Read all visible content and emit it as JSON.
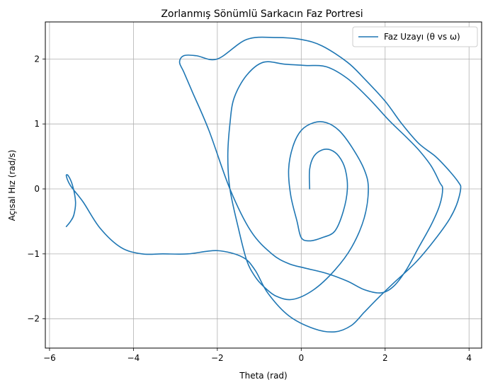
{
  "chart_data": {
    "type": "line",
    "title": "Zorlanmış Sönümlü Sarkacın Faz Portresi",
    "xlabel": "Theta (rad)",
    "ylabel": "Açısal Hız (rad/s)",
    "xlim": [
      -6.1,
      4.3
    ],
    "ylim": [
      -2.45,
      2.57
    ],
    "xticks": [
      -6,
      -4,
      -2,
      0,
      2,
      4
    ],
    "yticks": [
      -2,
      -1,
      0,
      1,
      2
    ],
    "xtick_labels": [
      "−6",
      "−4",
      "−2",
      "0",
      "2",
      "4"
    ],
    "ytick_labels": [
      "−2",
      "−1",
      "0",
      "1",
      "2"
    ],
    "grid": true,
    "legend_position": "top-right",
    "series": [
      {
        "name": "Faz Uzayı (θ vs ω)",
        "color": "#1f77b4",
        "x": [
          0.2,
          0.2,
          0.3,
          0.5,
          0.7,
          0.9,
          1.05,
          1.1,
          1.0,
          0.8,
          0.5,
          0.2,
          0.0,
          -0.1,
          -0.25,
          -0.3,
          -0.2,
          0.0,
          0.3,
          0.6,
          0.9,
          1.2,
          1.5,
          1.6,
          1.5,
          1.2,
          0.8,
          0.3,
          -0.2,
          -0.6,
          -0.9,
          -1.1,
          -1.3,
          -1.5,
          -1.7,
          -1.75,
          -1.7,
          -1.6,
          -1.3,
          -0.9,
          -0.4,
          0.1,
          0.6,
          1.1,
          1.6,
          2.1,
          2.5,
          2.8,
          3.1,
          3.3,
          3.37,
          3.3,
          3.1,
          2.8,
          2.5,
          2.2,
          1.9,
          1.5,
          1.1,
          0.6,
          0.1,
          -0.3,
          -0.7,
          -1.2,
          -1.7,
          -2.2,
          -2.6,
          -2.8,
          -2.9,
          -2.8,
          -2.5,
          -2.0,
          -1.3,
          -0.6,
          0.0,
          0.5,
          1.1,
          1.5,
          2.0,
          2.4,
          2.8,
          3.2,
          3.5,
          3.75,
          3.8,
          3.7,
          3.5,
          3.1,
          2.7,
          2.2,
          1.8,
          1.5,
          1.2,
          0.8,
          0.3,
          -0.3,
          -0.8,
          -1.1,
          -1.4,
          -2.0,
          -2.7,
          -3.3,
          -3.8,
          -4.3,
          -4.8,
          -5.2,
          -5.5,
          -5.6,
          -5.55,
          -5.45,
          -5.38,
          -5.42,
          -5.5,
          -5.6
        ],
        "y": [
          0.0,
          0.3,
          0.5,
          0.6,
          0.6,
          0.5,
          0.3,
          0.0,
          -0.35,
          -0.65,
          -0.75,
          -0.8,
          -0.75,
          -0.5,
          -0.1,
          0.3,
          0.65,
          0.9,
          1.02,
          1.02,
          0.9,
          0.65,
          0.3,
          0.0,
          -0.45,
          -0.9,
          -1.25,
          -1.55,
          -1.7,
          -1.65,
          -1.5,
          -1.35,
          -1.1,
          -0.6,
          0.0,
          0.5,
          1.0,
          1.4,
          1.75,
          1.95,
          1.92,
          1.9,
          1.88,
          1.7,
          1.4,
          1.05,
          0.8,
          0.6,
          0.35,
          0.1,
          0.0,
          -0.25,
          -0.55,
          -0.9,
          -1.25,
          -1.5,
          -1.6,
          -1.55,
          -1.42,
          -1.3,
          -1.22,
          -1.15,
          -1.0,
          -0.65,
          0.0,
          0.9,
          1.5,
          1.8,
          1.95,
          2.05,
          2.05,
          2.0,
          2.3,
          2.33,
          2.3,
          2.2,
          1.95,
          1.7,
          1.35,
          1.0,
          0.7,
          0.5,
          0.3,
          0.1,
          0.0,
          -0.25,
          -0.5,
          -0.85,
          -1.15,
          -1.45,
          -1.7,
          -1.9,
          -2.1,
          -2.2,
          -2.15,
          -1.95,
          -1.6,
          -1.25,
          -1.05,
          -0.95,
          -1.0,
          -1.0,
          -1.0,
          -0.9,
          -0.6,
          -0.2,
          0.05,
          0.2,
          0.2,
          0.05,
          -0.2,
          -0.4,
          -0.5,
          -0.58
        ]
      }
    ]
  }
}
